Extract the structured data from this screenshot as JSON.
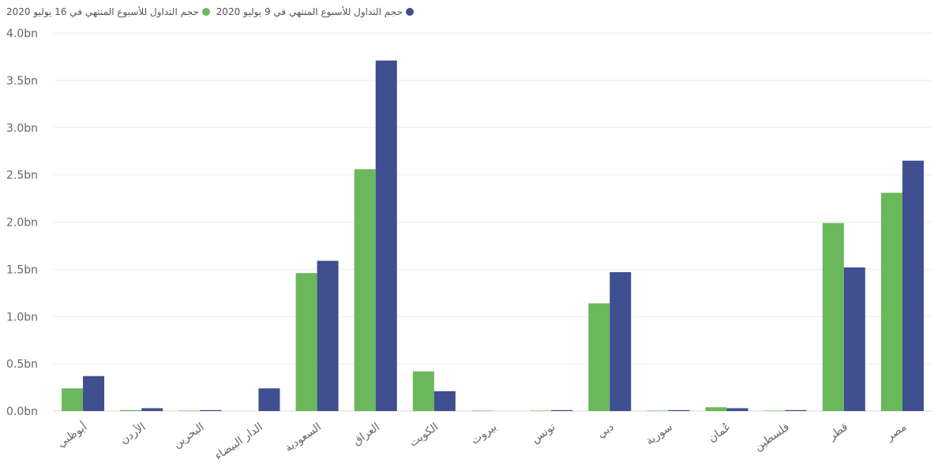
{
  "chart_data": {
    "type": "bar",
    "categories": [
      "أبوظبي",
      "الأردن",
      "البحرين",
      "الدار البيضاء",
      "السعودية",
      "العراق",
      "الكويت",
      "بيروت",
      "تونس",
      "دبي",
      "سورية",
      "عُمان",
      "فلسطين",
      "قطر",
      "مصر"
    ],
    "series": [
      {
        "name": "حجم التداول للأسبوع المنتهي في 16 يوليو 2020",
        "color": "#6ab85b",
        "values": [
          0.24,
          0.01,
          0.005,
          0.0,
          1.46,
          2.56,
          0.42,
          0.005,
          0.005,
          1.14,
          0.005,
          0.04,
          0.005,
          1.99,
          2.31
        ]
      },
      {
        "name": "حجم التداول للأسبوع المنتهي في 9 يوليو 2020",
        "color": "#3f4f8f",
        "values": [
          0.37,
          0.03,
          0.01,
          0.24,
          1.59,
          3.71,
          0.21,
          0.0,
          0.01,
          1.47,
          0.01,
          0.03,
          0.01,
          1.52,
          2.65
        ]
      }
    ],
    "ylim": [
      0,
      4.0
    ],
    "yticks": [
      {
        "value": 0.0,
        "label": "0.0bn"
      },
      {
        "value": 0.5,
        "label": "0.5bn"
      },
      {
        "value": 1.0,
        "label": "1.0bn"
      },
      {
        "value": 1.5,
        "label": "1.5bn"
      },
      {
        "value": 2.0,
        "label": "2.0bn"
      },
      {
        "value": 2.5,
        "label": "2.5bn"
      },
      {
        "value": 3.0,
        "label": "3.0bn"
      },
      {
        "value": 3.5,
        "label": "3.5bn"
      },
      {
        "value": 4.0,
        "label": "4.0bn"
      }
    ],
    "grid": true,
    "legend_position": "top-left",
    "title": "",
    "xlabel": "",
    "ylabel": ""
  }
}
